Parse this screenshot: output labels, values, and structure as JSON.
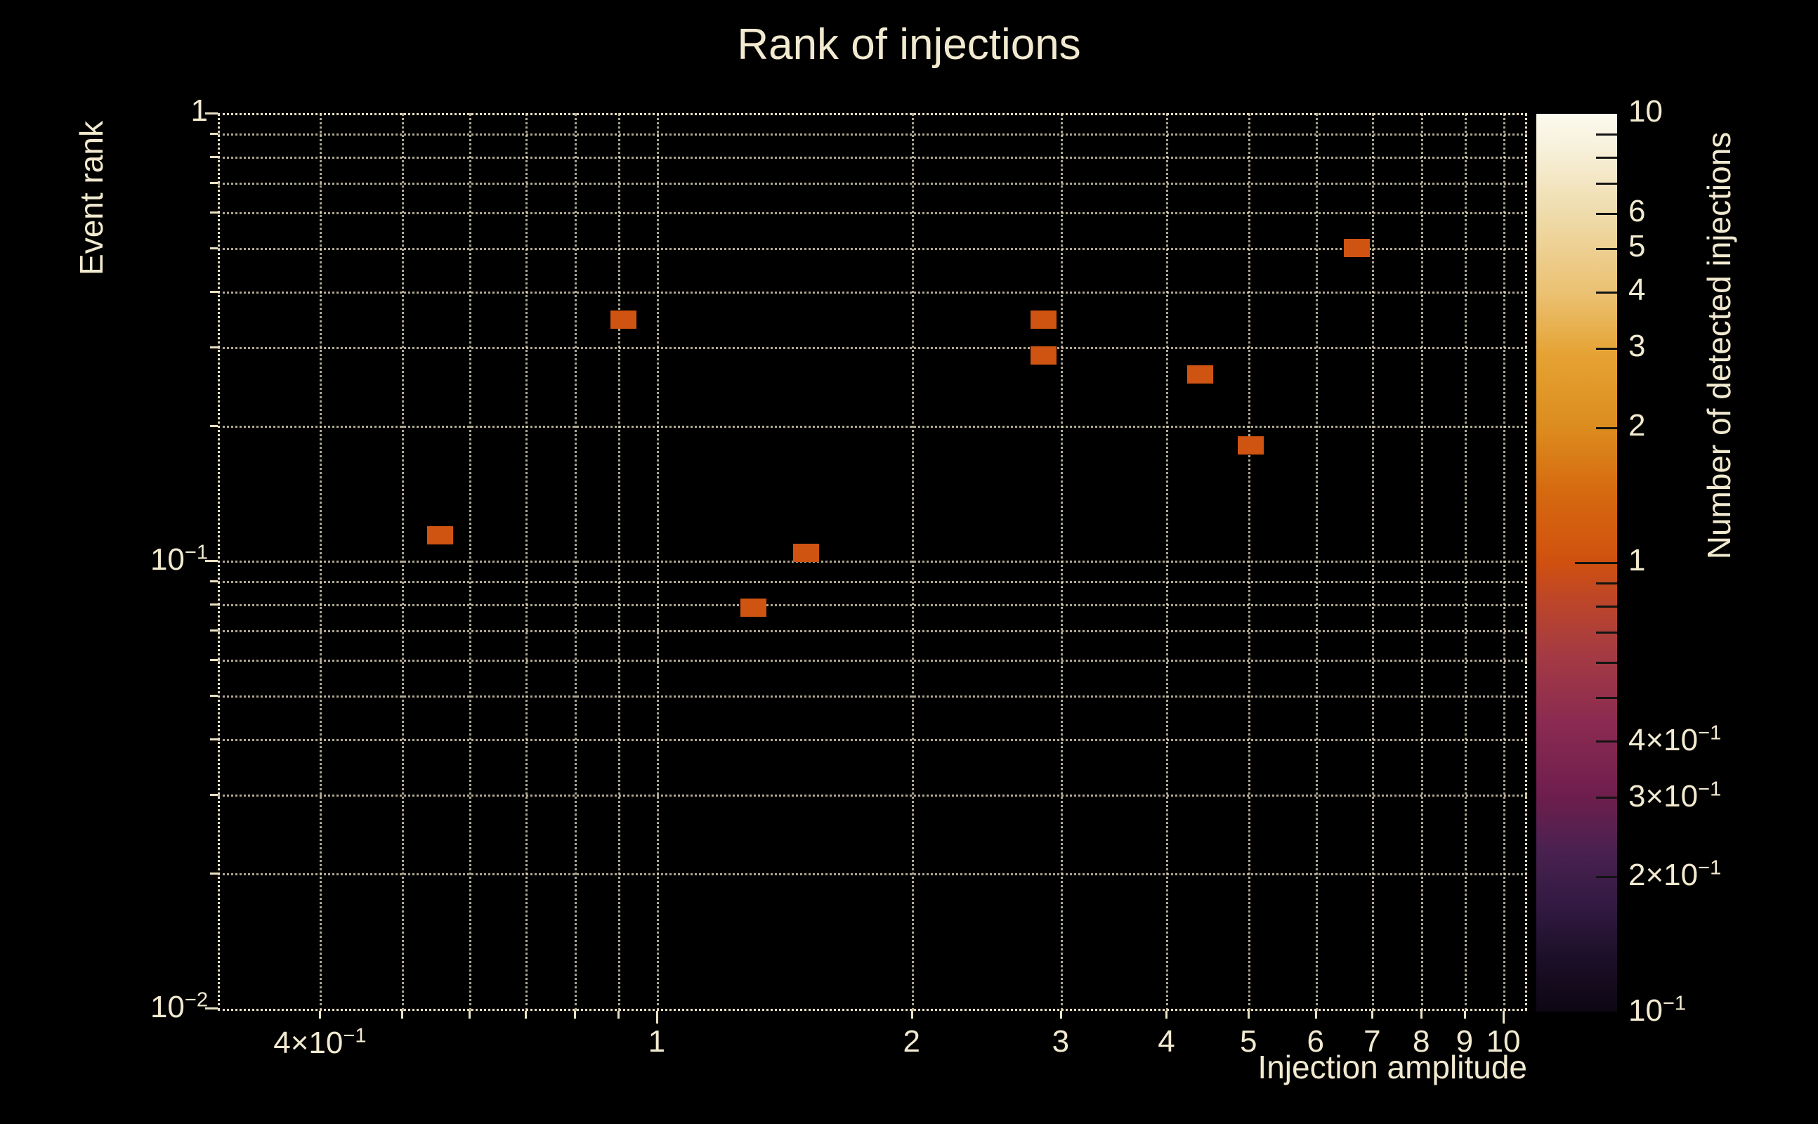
{
  "title": "Rank of injections",
  "colors": {
    "background": "#000000",
    "text": "#f2ead0",
    "grid": "#e9dfc2",
    "marker": "#cf5311",
    "colorbar_tick": "#141414"
  },
  "chart_data": {
    "type": "heatmap",
    "title": "Rank of injections",
    "xlabel": "Injection amplitude",
    "ylabel": "Event rank",
    "colorbar_label": "Number of detected injections",
    "x_scale": "log",
    "y_scale": "log",
    "color_scale": "log",
    "xlim": [
      0.303,
      10.67
    ],
    "ylim": [
      0.00986,
      1.0
    ],
    "clim": [
      0.1,
      10
    ],
    "grid": true,
    "legend": "none",
    "points": [
      {
        "amplitude": 0.554,
        "rank": 0.114,
        "count": 1
      },
      {
        "amplitude": 0.912,
        "rank": 0.346,
        "count": 1
      },
      {
        "amplitude": 1.3,
        "rank": 0.0785,
        "count": 1
      },
      {
        "amplitude": 1.5,
        "rank": 0.104,
        "count": 1
      },
      {
        "amplitude": 2.86,
        "rank": 0.287,
        "count": 1
      },
      {
        "amplitude": 2.86,
        "rank": 0.346,
        "count": 1
      },
      {
        "amplitude": 4.38,
        "rank": 0.261,
        "count": 1
      },
      {
        "amplitude": 5.03,
        "rank": 0.181,
        "count": 1
      },
      {
        "amplitude": 6.71,
        "rank": 0.5,
        "count": 1
      }
    ],
    "x_ticks": [
      {
        "v": 0.4,
        "base": "4×10",
        "sup": "−1"
      },
      {
        "v": 1,
        "base": "1"
      },
      {
        "v": 2,
        "base": "2"
      },
      {
        "v": 3,
        "base": "3"
      },
      {
        "v": 4,
        "base": "4"
      },
      {
        "v": 5,
        "base": "5"
      },
      {
        "v": 6,
        "base": "6"
      },
      {
        "v": 7,
        "base": "7"
      },
      {
        "v": 8,
        "base": "8"
      },
      {
        "v": 9,
        "base": "9"
      },
      {
        "v": 10,
        "base": "10"
      }
    ],
    "y_ticks": [
      {
        "v": 1,
        "base": "1"
      },
      {
        "v": 0.1,
        "base": "10",
        "sup": "−1"
      },
      {
        "v": 0.01,
        "base": "10",
        "sup": "−2"
      }
    ],
    "x_major_values": [
      1,
      10
    ],
    "y_major_values": [
      1,
      0.1,
      0.01
    ],
    "x_gridlines": [
      0.4,
      0.5,
      0.6,
      0.7,
      0.8,
      0.9,
      1,
      2,
      3,
      4,
      5,
      6,
      7,
      8,
      9,
      10
    ],
    "y_gridlines": [
      0.9,
      0.8,
      0.7,
      0.6,
      0.5,
      0.4,
      0.3,
      0.2,
      0.1,
      0.09,
      0.08,
      0.07,
      0.06,
      0.05,
      0.04,
      0.03,
      0.02
    ],
    "colorbar_ticks": [
      {
        "v": 10,
        "base": "10"
      },
      {
        "v": 6,
        "base": "6"
      },
      {
        "v": 5,
        "base": "5"
      },
      {
        "v": 4,
        "base": "4"
      },
      {
        "v": 3,
        "base": "3"
      },
      {
        "v": 2,
        "base": "2"
      },
      {
        "v": 1,
        "base": "1"
      },
      {
        "v": 0.4,
        "base": "4×10",
        "sup": "−1"
      },
      {
        "v": 0.3,
        "base": "3×10",
        "sup": "−1"
      },
      {
        "v": 0.2,
        "base": "2×10",
        "sup": "−1"
      },
      {
        "v": 0.1,
        "base": "10",
        "sup": "−1"
      }
    ],
    "colorbar_tick_marks": [
      9,
      8,
      7,
      6,
      5,
      4,
      3,
      2,
      1,
      0.9,
      0.8,
      0.7,
      0.6,
      0.5,
      0.4,
      0.3,
      0.2
    ],
    "colorbar_major_tick_marks": [
      1
    ],
    "colorbar_gradient": [
      {
        "t": 0.0,
        "color": "#0d0714"
      },
      {
        "t": 0.06,
        "color": "#1c0f28"
      },
      {
        "t": 0.12,
        "color": "#331a43"
      },
      {
        "t": 0.18,
        "color": "#4a2150"
      },
      {
        "t": 0.24,
        "color": "#6e1e4d"
      },
      {
        "t": 0.32,
        "color": "#8a2a52"
      },
      {
        "t": 0.4,
        "color": "#a53b42"
      },
      {
        "t": 0.46,
        "color": "#be4628"
      },
      {
        "t": 0.5,
        "color": "#d0500f"
      },
      {
        "t": 0.58,
        "color": "#d66a10"
      },
      {
        "t": 0.65,
        "color": "#dc8c1e"
      },
      {
        "t": 0.73,
        "color": "#e5a232"
      },
      {
        "t": 0.8,
        "color": "#ebc172"
      },
      {
        "t": 0.89,
        "color": "#efdcac"
      },
      {
        "t": 0.95,
        "color": "#f6edd3"
      },
      {
        "t": 1.0,
        "color": "#fcfaf0"
      }
    ]
  }
}
